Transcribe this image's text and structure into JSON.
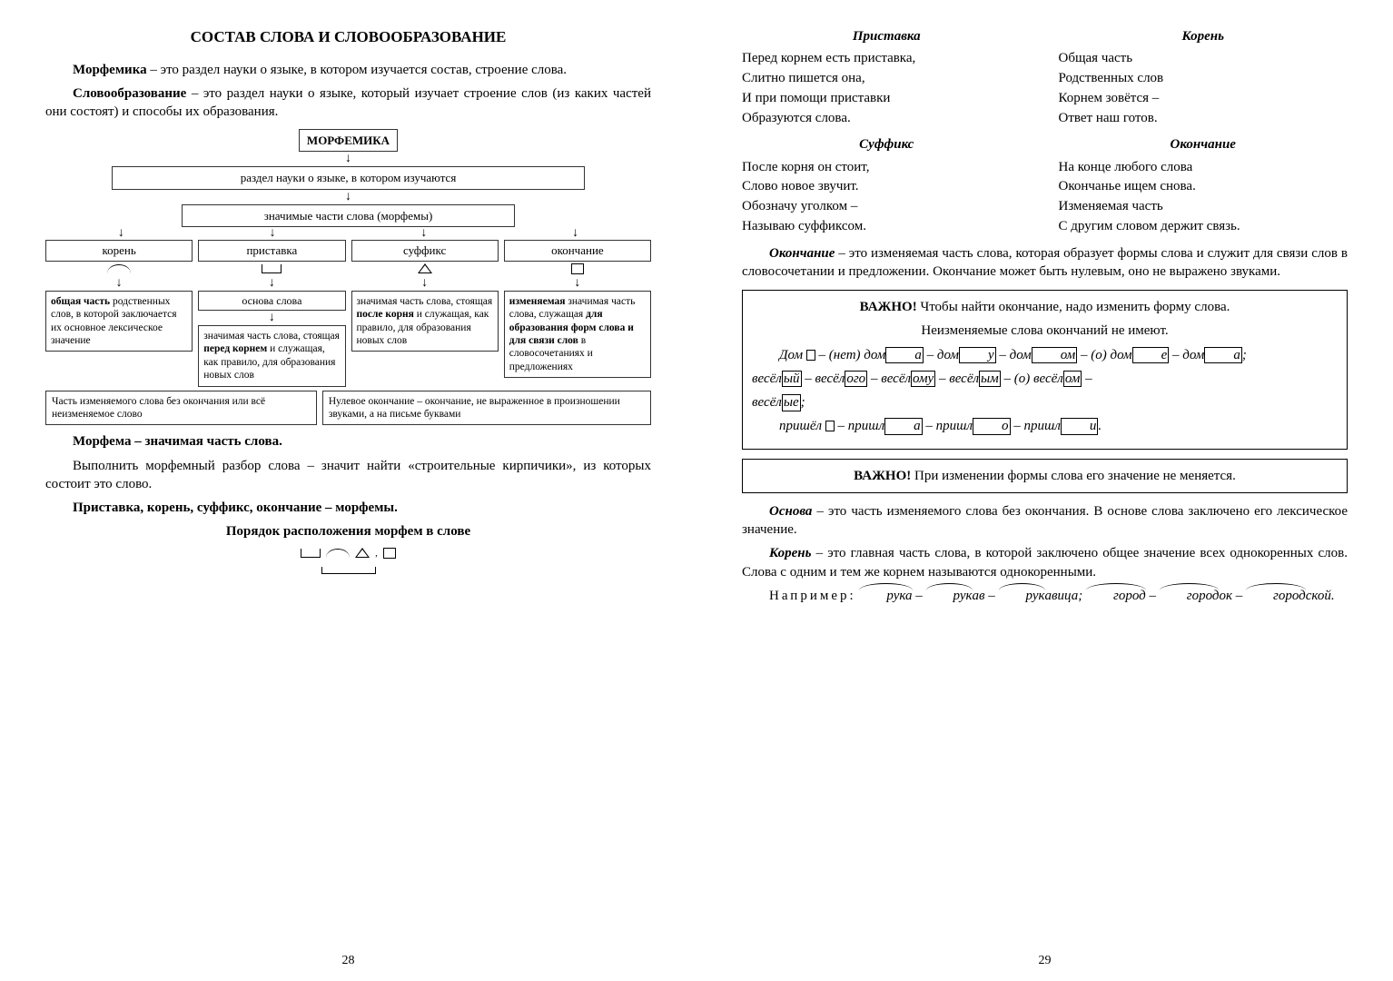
{
  "left": {
    "title": "СОСТАВ СЛОВА И СЛОВООБРАЗОВАНИЕ",
    "morfemika_bold": "Морфемика",
    "morfemika_text": " – это раздел науки о языке, в котором изучается состав, строение слова.",
    "slovoobraz_bold": "Словообразование",
    "slovoobraz_text": " – это раздел науки о языке, который изучает строение слов (из каких частей они состоят) и способы их образования.",
    "diagram": {
      "top": "МОРФЕМИКА",
      "level2": "раздел науки о языке, в котором изучаются",
      "level3": "значимые части слова (морфемы)",
      "cols": [
        {
          "name": "корень",
          "desc": "<b>общая часть</b> родственных слов, в которой заключается их основное лексическое значение"
        },
        {
          "name": "приставка",
          "mid": "основа  слова",
          "desc": "значимая часть слова, стоящая <b>перед корнем</b> и служащая, как правило, для образования новых слов"
        },
        {
          "name": "суффикс",
          "desc": "значимая часть слова, стоящая <b>после корня</b> и служащая, как правило, для образования новых слов"
        },
        {
          "name": "окончание",
          "desc": "<b>изменяемая</b> значимая часть слова, служащая <b>для образования форм слова и для связи слов</b> в словосочетаниях и предложениях"
        }
      ],
      "bottom1": "Часть изменяемого слова без окончания или всё неизменяемое слово",
      "bottom2": "Нулевое окончание – окончание, не выраженное в произношении звуками, а на письме буквами"
    },
    "morfema_bold": "Морфема – значимая часть слова.",
    "p_morfema": "Выполнить морфемный разбор слова – значит найти «строительные кирпичики», из которых состоит это слово.",
    "p_morfemy": "Приставка, корень, суффикс, окончание – морфемы.",
    "p_poryadok": "Порядок расположения морфем в слове",
    "pagenum": "28"
  },
  "right": {
    "poems": {
      "pristavka": {
        "title": "Приставка",
        "l1": "Перед корнем есть приставка,",
        "l2": "Слитно пишется она,",
        "l3": "И при помощи приставки",
        "l4": "Образуются слова."
      },
      "koren": {
        "title": "Корень",
        "l1": "Общая часть",
        "l2": "Родственных слов",
        "l3": "Корнем зовётся –",
        "l4": "Ответ наш готов."
      },
      "suffiks": {
        "title": "Суффикс",
        "l1": "После корня он стоит,",
        "l2": "Слово новое звучит.",
        "l3": "Обозначу уголком –",
        "l4": "Называю суффиксом."
      },
      "okonchanie": {
        "title": "Окончание",
        "l1": "На конце любого слова",
        "l2": "Окончанье ищем снова.",
        "l3": "Изменяемая часть",
        "l4": "С другим словом держит связь."
      }
    },
    "okonchanie_bold": "Окончание",
    "okonchanie_text": " – это изменяемая часть слова, которая образует формы слова и служит для связи слов в словосочетании и предложении. Окончание может быть нулевым, оно не выражено звуками.",
    "box1_l1": "ВАЖНО!",
    "box1_l1b": " Чтобы найти окончание, надо изменить форму слова.",
    "box1_l2": "Неизменяемые слова окончаний не имеют.",
    "box2_l1": "ВАЖНО!",
    "box2_l1b": " При изменении формы слова его значение не меняется.",
    "osnova_bold": "Основа",
    "osnova_text": " – это часть изменяемого слова без окончания. В основе слова заключено его лексическое значение.",
    "koren_bold": "Корень",
    "koren_text": " – это главная часть слова, в которой заключено общее значение всех однокоренных слов. Слова с одним и тем же корнем называются однокоренными.",
    "example_label": "Например:",
    "pagenum": "29"
  }
}
